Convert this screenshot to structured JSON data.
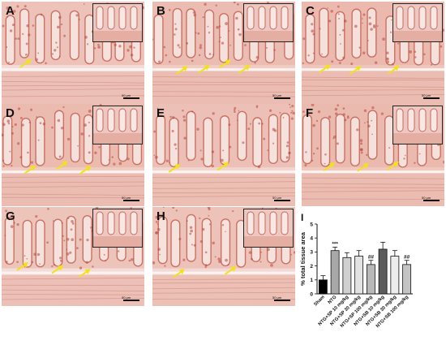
{
  "panels": [
    {
      "id": "A",
      "label": "A",
      "arrows": 1,
      "tone": "#f4dcd6",
      "scale": "50 µm"
    },
    {
      "id": "B",
      "label": "B",
      "arrows": 4,
      "tone": "#f0ccc3",
      "scale": "50 µm"
    },
    {
      "id": "C",
      "label": "C",
      "arrows": 3,
      "tone": "#efc6bd",
      "scale": "50 µm"
    },
    {
      "id": "D",
      "label": "D",
      "arrows": 3,
      "tone": "#efcbc2",
      "scale": "50 µm"
    },
    {
      "id": "E",
      "label": "E",
      "arrows": 2,
      "tone": "#f2d5ce",
      "scale": "50 µm"
    },
    {
      "id": "F",
      "label": "F",
      "arrows": 3,
      "tone": "#efc8be",
      "scale": "50 µm"
    },
    {
      "id": "G",
      "label": "G",
      "arrows": 3,
      "tone": "#f4ddd8",
      "scale": "50 µm"
    },
    {
      "id": "H",
      "label": "H",
      "arrows": 2,
      "tone": "#f3d9d3",
      "scale": "50 µm"
    }
  ],
  "chart_panel_label": "I",
  "chart_data": {
    "type": "bar",
    "title": "",
    "ylabel": "% total tissue area",
    "xlabel": "",
    "ylim": [
      0,
      5
    ],
    "yticks": [
      0,
      1,
      2,
      3,
      4,
      5
    ],
    "categories": [
      "Sham",
      "NTG",
      "NTG+SP 10 mg/kg",
      "NTG+SP 30 mg/kg",
      "NTG+SP 100 mg/kg",
      "NTG+SB 10 mg/kg",
      "NTG+SB 30 mg/kg",
      "NTG+SB 100 mg/kg"
    ],
    "values": [
      1.0,
      3.1,
      2.6,
      2.7,
      2.1,
      3.2,
      2.7,
      2.1
    ],
    "errors": [
      0.3,
      0.25,
      0.35,
      0.4,
      0.3,
      0.5,
      0.4,
      0.3
    ],
    "bar_colors": [
      "#000000",
      "#a8a8a8",
      "#d0d0d0",
      "#e2e2e2",
      "#b8b8b8",
      "#5c5c5c",
      "#ededed",
      "#c4c4c4"
    ],
    "annotations": [
      "",
      "***",
      "",
      "",
      "##",
      "",
      "",
      "##"
    ]
  }
}
